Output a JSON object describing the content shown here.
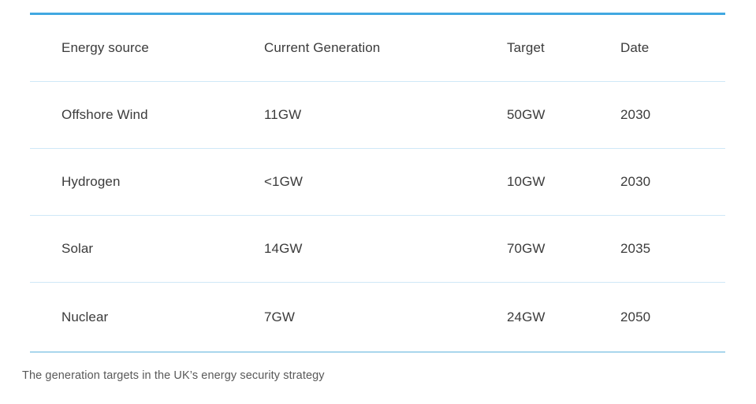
{
  "caption": "The generation targets in the UK’s energy security strategy",
  "colors": {
    "accent_top": "#41a8e1",
    "row_divider": "#cfe8f7",
    "bottom_divider": "#a9d6ec",
    "cell_text": "#3b3b3b",
    "caption_text": "#595959"
  },
  "table": {
    "columns": [
      "Energy source",
      "Current Generation",
      "Target",
      "Date"
    ],
    "rows": [
      {
        "source": "Offshore Wind",
        "current": "11GW",
        "target": "50GW",
        "date": "2030"
      },
      {
        "source": "Hydrogen",
        "current": "<1GW",
        "target": "10GW",
        "date": "2030"
      },
      {
        "source": "Solar",
        "current": "14GW",
        "target": "70GW",
        "date": "2035"
      },
      {
        "source": "Nuclear",
        "current": "7GW",
        "target": "24GW",
        "date": "2050"
      }
    ]
  },
  "chart_data": {
    "type": "table",
    "title": "The generation targets in the UK’s energy security strategy",
    "columns": [
      "Energy source",
      "Current Generation",
      "Target",
      "Date"
    ],
    "rows": [
      [
        "Offshore Wind",
        "11GW",
        "50GW",
        "2030"
      ],
      [
        "Hydrogen",
        "<1GW",
        "10GW",
        "2030"
      ],
      [
        "Solar",
        "14GW",
        "70GW",
        "2035"
      ],
      [
        "Nuclear",
        "7GW",
        "24GW",
        "2050"
      ]
    ]
  }
}
